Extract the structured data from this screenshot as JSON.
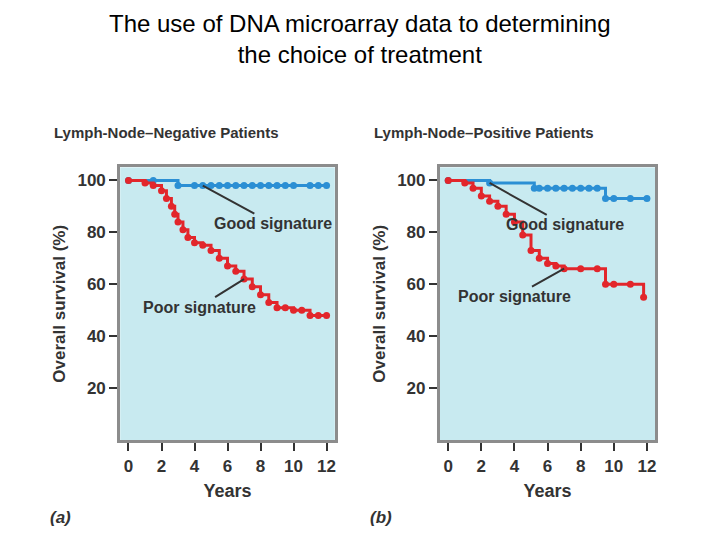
{
  "title": "The use of DNA microarray data to determining the choice of treatment",
  "chart_data": [
    {
      "type": "line",
      "panel_label": "(a)",
      "title": "Lymph-Node–Negative Patients",
      "x_label": "Years",
      "y_label": "Overall survival (%)",
      "xlim": [
        -0.5,
        12.5
      ],
      "ylim": [
        0,
        105
      ],
      "xticks": [
        0,
        2,
        4,
        6,
        8,
        10,
        12
      ],
      "yticks": [
        20,
        40,
        60,
        80,
        100
      ],
      "grid": false,
      "series": [
        {
          "name": "Good signature",
          "color": "#2b8fd4",
          "marker": "circle",
          "line_style": "step",
          "x": [
            0,
            1.5,
            3,
            4,
            4.5,
            5,
            5.5,
            6,
            6.5,
            7,
            7.5,
            8,
            8.5,
            9,
            9.5,
            10,
            11,
            11.5,
            12
          ],
          "values": [
            100,
            100,
            98,
            98,
            98,
            98,
            98,
            98,
            98,
            98,
            98,
            98,
            98,
            98,
            98,
            98,
            98,
            98,
            98
          ]
        },
        {
          "name": "Poor signature",
          "color": "#e2262b",
          "marker": "circle",
          "line_style": "step",
          "x": [
            0,
            1,
            1.5,
            2,
            2.3,
            2.6,
            2.8,
            3,
            3.3,
            3.6,
            4,
            4.5,
            5,
            5.5,
            6,
            6.5,
            7,
            7.5,
            8,
            8.5,
            9,
            9.5,
            10,
            10.5,
            11,
            11.5,
            12
          ],
          "values": [
            100,
            99,
            98,
            96,
            93,
            90,
            87,
            84,
            81,
            78,
            76,
            75,
            73,
            70,
            67,
            65,
            62,
            59,
            56,
            53,
            51,
            51,
            50,
            50,
            48,
            48,
            48
          ]
        }
      ]
    },
    {
      "type": "line",
      "panel_label": "(b)",
      "title": "Lymph-Node–Positive Patients",
      "x_label": "Years",
      "y_label": "Overall survival (%)",
      "xlim": [
        -0.5,
        12.5
      ],
      "ylim": [
        0,
        105
      ],
      "xticks": [
        0,
        2,
        4,
        6,
        8,
        10,
        12
      ],
      "yticks": [
        20,
        40,
        60,
        80,
        100
      ],
      "grid": false,
      "series": [
        {
          "name": "Good signature",
          "color": "#2b8fd4",
          "marker": "circle",
          "line_style": "step",
          "x": [
            0,
            2.5,
            5.2,
            5.5,
            6,
            6.5,
            7,
            7.5,
            8,
            8.5,
            9,
            9.5,
            10,
            11,
            12
          ],
          "values": [
            100,
            99,
            97,
            97,
            97,
            97,
            97,
            97,
            97,
            97,
            97,
            93,
            93,
            93,
            93
          ]
        },
        {
          "name": "Poor signature",
          "color": "#e2262b",
          "marker": "circle",
          "line_style": "step",
          "x": [
            0,
            1,
            1.5,
            2,
            2.5,
            3,
            3.5,
            4,
            4.5,
            5,
            5.5,
            6,
            6.5,
            7,
            8,
            9,
            9.5,
            10,
            11,
            11.8
          ],
          "values": [
            100,
            99,
            97,
            94,
            92,
            90,
            87,
            84,
            79,
            73,
            70,
            68,
            67,
            66,
            66,
            66,
            60,
            60,
            60,
            55
          ]
        }
      ]
    }
  ]
}
